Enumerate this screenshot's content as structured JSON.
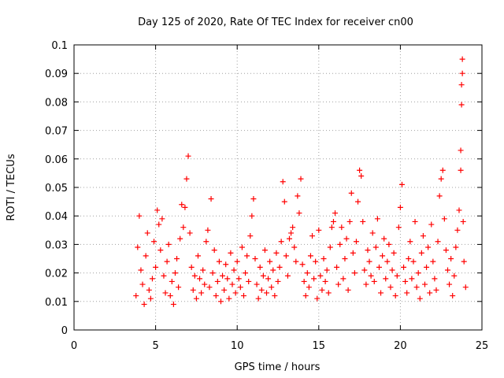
{
  "colors": {
    "series": "#ff0000",
    "axis": "#000000",
    "grid": "#a0a0a0",
    "background": "#ffffff"
  },
  "chart_data": {
    "type": "scatter",
    "title": "Day 125 of 2020, Rate Of TEC Index for receiver cn00",
    "xlabel": "GPS time / hours",
    "ylabel": "ROTI / TECUs",
    "xlim": [
      0,
      25
    ],
    "ylim": [
      0,
      0.1
    ],
    "xticks": [
      0,
      5,
      10,
      15,
      20,
      25
    ],
    "xtick_labels": [
      "0",
      "5",
      "10",
      "15",
      "20",
      "25"
    ],
    "yticks": [
      0,
      0.01,
      0.02,
      0.03,
      0.04,
      0.05,
      0.06,
      0.07,
      0.08,
      0.09,
      0.1
    ],
    "ytick_labels": [
      "0",
      "0.01",
      "0.02",
      "0.03",
      "0.04",
      "0.05",
      "0.06",
      "0.07",
      "0.08",
      "0.09",
      "0.1"
    ],
    "grid": true,
    "marker": "+",
    "series": [
      {
        "points": [
          [
            3.8,
            0.012
          ],
          [
            3.9,
            0.029
          ],
          [
            4.0,
            0.04
          ],
          [
            4.1,
            0.021
          ],
          [
            4.2,
            0.016
          ],
          [
            4.3,
            0.009
          ],
          [
            4.4,
            0.026
          ],
          [
            4.5,
            0.034
          ],
          [
            4.6,
            0.014
          ],
          [
            4.7,
            0.011
          ],
          [
            4.8,
            0.018
          ],
          [
            4.9,
            0.031
          ],
          [
            5.0,
            0.022
          ],
          [
            5.1,
            0.042
          ],
          [
            5.2,
            0.037
          ],
          [
            5.3,
            0.028
          ],
          [
            5.4,
            0.039
          ],
          [
            5.5,
            0.019
          ],
          [
            5.6,
            0.013
          ],
          [
            5.7,
            0.024
          ],
          [
            5.8,
            0.03
          ],
          [
            5.9,
            0.012
          ],
          [
            6.0,
            0.017
          ],
          [
            6.1,
            0.009
          ],
          [
            6.2,
            0.02
          ],
          [
            6.3,
            0.025
          ],
          [
            6.4,
            0.015
          ],
          [
            6.5,
            0.032
          ],
          [
            6.6,
            0.044
          ],
          [
            6.7,
            0.036
          ],
          [
            6.8,
            0.043
          ],
          [
            6.9,
            0.053
          ],
          [
            7.0,
            0.061
          ],
          [
            7.1,
            0.034
          ],
          [
            7.2,
            0.022
          ],
          [
            7.3,
            0.014
          ],
          [
            7.4,
            0.019
          ],
          [
            7.5,
            0.011
          ],
          [
            7.6,
            0.026
          ],
          [
            7.7,
            0.018
          ],
          [
            7.8,
            0.013
          ],
          [
            7.9,
            0.021
          ],
          [
            8.0,
            0.016
          ],
          [
            8.1,
            0.031
          ],
          [
            8.2,
            0.035
          ],
          [
            8.3,
            0.015
          ],
          [
            8.4,
            0.046
          ],
          [
            8.5,
            0.02
          ],
          [
            8.6,
            0.028
          ],
          [
            8.7,
            0.012
          ],
          [
            8.8,
            0.017
          ],
          [
            8.9,
            0.024
          ],
          [
            9.0,
            0.01
          ],
          [
            9.1,
            0.019
          ],
          [
            9.2,
            0.014
          ],
          [
            9.3,
            0.023
          ],
          [
            9.4,
            0.018
          ],
          [
            9.5,
            0.011
          ],
          [
            9.6,
            0.027
          ],
          [
            9.7,
            0.016
          ],
          [
            9.8,
            0.021
          ],
          [
            9.9,
            0.013
          ],
          [
            10.0,
            0.024
          ],
          [
            10.1,
            0.018
          ],
          [
            10.2,
            0.015
          ],
          [
            10.3,
            0.029
          ],
          [
            10.4,
            0.012
          ],
          [
            10.5,
            0.02
          ],
          [
            10.6,
            0.026
          ],
          [
            10.7,
            0.017
          ],
          [
            10.8,
            0.033
          ],
          [
            10.9,
            0.04
          ],
          [
            11.0,
            0.046
          ],
          [
            11.1,
            0.025
          ],
          [
            11.2,
            0.016
          ],
          [
            11.3,
            0.011
          ],
          [
            11.4,
            0.022
          ],
          [
            11.5,
            0.014
          ],
          [
            11.6,
            0.019
          ],
          [
            11.7,
            0.028
          ],
          [
            11.8,
            0.013
          ],
          [
            11.9,
            0.018
          ],
          [
            12.0,
            0.024
          ],
          [
            12.1,
            0.015
          ],
          [
            12.2,
            0.021
          ],
          [
            12.3,
            0.012
          ],
          [
            12.4,
            0.027
          ],
          [
            12.5,
            0.017
          ],
          [
            12.6,
            0.022
          ],
          [
            12.7,
            0.031
          ],
          [
            12.8,
            0.052
          ],
          [
            12.9,
            0.045
          ],
          [
            13.0,
            0.026
          ],
          [
            13.1,
            0.019
          ],
          [
            13.2,
            0.032
          ],
          [
            13.3,
            0.034
          ],
          [
            13.4,
            0.036
          ],
          [
            13.5,
            0.029
          ],
          [
            13.6,
            0.024
          ],
          [
            13.7,
            0.047
          ],
          [
            13.8,
            0.041
          ],
          [
            13.9,
            0.053
          ],
          [
            14.0,
            0.023
          ],
          [
            14.1,
            0.017
          ],
          [
            14.2,
            0.012
          ],
          [
            14.3,
            0.02
          ],
          [
            14.4,
            0.015
          ],
          [
            14.5,
            0.026
          ],
          [
            14.6,
            0.033
          ],
          [
            14.7,
            0.018
          ],
          [
            14.8,
            0.024
          ],
          [
            14.9,
            0.011
          ],
          [
            15.0,
            0.035
          ],
          [
            15.1,
            0.019
          ],
          [
            15.2,
            0.014
          ],
          [
            15.3,
            0.025
          ],
          [
            15.4,
            0.017
          ],
          [
            15.5,
            0.021
          ],
          [
            15.6,
            0.013
          ],
          [
            15.7,
            0.029
          ],
          [
            15.8,
            0.036
          ],
          [
            15.9,
            0.038
          ],
          [
            16.0,
            0.041
          ],
          [
            16.1,
            0.022
          ],
          [
            16.2,
            0.016
          ],
          [
            16.3,
            0.03
          ],
          [
            16.4,
            0.036
          ],
          [
            16.5,
            0.018
          ],
          [
            16.6,
            0.025
          ],
          [
            16.7,
            0.032
          ],
          [
            16.8,
            0.014
          ],
          [
            16.9,
            0.038
          ],
          [
            17.0,
            0.048
          ],
          [
            17.1,
            0.027
          ],
          [
            17.2,
            0.02
          ],
          [
            17.3,
            0.031
          ],
          [
            17.4,
            0.045
          ],
          [
            17.5,
            0.056
          ],
          [
            17.6,
            0.054
          ],
          [
            17.7,
            0.038
          ],
          [
            17.8,
            0.021
          ],
          [
            17.9,
            0.016
          ],
          [
            18.0,
            0.028
          ],
          [
            18.1,
            0.024
          ],
          [
            18.2,
            0.019
          ],
          [
            18.3,
            0.034
          ],
          [
            18.4,
            0.017
          ],
          [
            18.5,
            0.029
          ],
          [
            18.6,
            0.039
          ],
          [
            18.7,
            0.022
          ],
          [
            18.8,
            0.013
          ],
          [
            18.9,
            0.026
          ],
          [
            19.0,
            0.032
          ],
          [
            19.1,
            0.018
          ],
          [
            19.2,
            0.024
          ],
          [
            19.3,
            0.03
          ],
          [
            19.4,
            0.015
          ],
          [
            19.5,
            0.021
          ],
          [
            19.6,
            0.027
          ],
          [
            19.7,
            0.012
          ],
          [
            19.8,
            0.019
          ],
          [
            19.9,
            0.036
          ],
          [
            20.0,
            0.043
          ],
          [
            20.1,
            0.051
          ],
          [
            20.2,
            0.022
          ],
          [
            20.3,
            0.017
          ],
          [
            20.4,
            0.013
          ],
          [
            20.5,
            0.025
          ],
          [
            20.6,
            0.031
          ],
          [
            20.7,
            0.018
          ],
          [
            20.8,
            0.024
          ],
          [
            20.9,
            0.038
          ],
          [
            21.0,
            0.015
          ],
          [
            21.1,
            0.02
          ],
          [
            21.2,
            0.011
          ],
          [
            21.3,
            0.027
          ],
          [
            21.4,
            0.033
          ],
          [
            21.5,
            0.016
          ],
          [
            21.6,
            0.022
          ],
          [
            21.7,
            0.029
          ],
          [
            21.8,
            0.013
          ],
          [
            21.9,
            0.037
          ],
          [
            22.0,
            0.024
          ],
          [
            22.1,
            0.018
          ],
          [
            22.2,
            0.014
          ],
          [
            22.3,
            0.031
          ],
          [
            22.4,
            0.047
          ],
          [
            22.5,
            0.053
          ],
          [
            22.6,
            0.056
          ],
          [
            22.7,
            0.039
          ],
          [
            22.8,
            0.028
          ],
          [
            22.9,
            0.021
          ],
          [
            23.0,
            0.016
          ],
          [
            23.1,
            0.025
          ],
          [
            23.2,
            0.012
          ],
          [
            23.3,
            0.019
          ],
          [
            23.4,
            0.029
          ],
          [
            23.5,
            0.035
          ],
          [
            23.6,
            0.042
          ],
          [
            23.7,
            0.056
          ],
          [
            23.7,
            0.063
          ],
          [
            23.75,
            0.079
          ],
          [
            23.75,
            0.086
          ],
          [
            23.8,
            0.09
          ],
          [
            23.8,
            0.095
          ],
          [
            23.85,
            0.038
          ],
          [
            23.9,
            0.024
          ],
          [
            24.0,
            0.015
          ]
        ]
      }
    ]
  }
}
